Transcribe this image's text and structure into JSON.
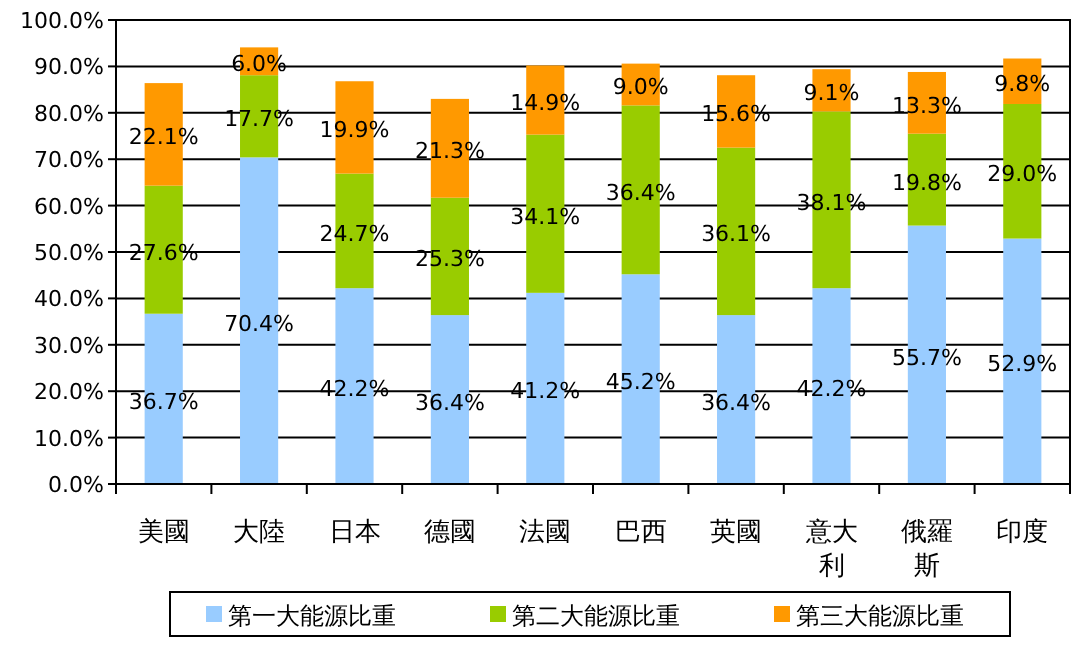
{
  "chart_data": {
    "type": "bar",
    "stacked": true,
    "grid": "y",
    "legend": "bottom",
    "categories": [
      "美國",
      "大陸",
      "日本",
      "德國",
      "法國",
      "巴西",
      "英國",
      "意大利",
      "俄羅斯",
      "印度"
    ],
    "series": [
      {
        "name": "第一大能源比重",
        "color": "#99ccff",
        "values": [
          36.7,
          70.4,
          42.2,
          36.4,
          41.2,
          45.2,
          36.4,
          42.2,
          55.7,
          52.9
        ],
        "value_labels": [
          "36.7%",
          "70.4%",
          "42.2%",
          "36.4%",
          "41.2%",
          "45.2%",
          "36.4%",
          "42.2%",
          "55.7%",
          "52.9%"
        ]
      },
      {
        "name": "第二大能源比重",
        "color": "#99cc00",
        "values": [
          27.6,
          17.7,
          24.7,
          25.3,
          34.1,
          36.4,
          36.1,
          38.1,
          19.8,
          29.0
        ],
        "value_labels": [
          "27.6%",
          "17.7%",
          "24.7%",
          "25.3%",
          "34.1%",
          "36.4%",
          "36.1%",
          "38.1%",
          "19.8%",
          "29.0%"
        ]
      },
      {
        "name": "第三大能源比重",
        "color": "#ff9900",
        "values": [
          22.1,
          6.0,
          19.9,
          21.3,
          14.9,
          9.0,
          15.6,
          9.1,
          13.3,
          9.8
        ],
        "value_labels": [
          "22.1%",
          "6.0%",
          "19.9%",
          "21.3%",
          "14.9%",
          "9.0%",
          "15.6%",
          "9.1%",
          "13.3%",
          "9.8%"
        ]
      }
    ],
    "ylim": [
      0,
      100
    ],
    "yticks": [
      {
        "value": 0,
        "label": "0.0%"
      },
      {
        "value": 10,
        "label": "10.0%"
      },
      {
        "value": 20,
        "label": "20.0%"
      },
      {
        "value": 30,
        "label": "30.0%"
      },
      {
        "value": 40,
        "label": "40.0%"
      },
      {
        "value": 50,
        "label": "50.0%"
      },
      {
        "value": 60,
        "label": "60.0%"
      },
      {
        "value": 70,
        "label": "70.0%"
      },
      {
        "value": 80,
        "label": "80.0%"
      },
      {
        "value": 90,
        "label": "90.0%"
      },
      {
        "value": 100,
        "label": "100.0%"
      }
    ]
  }
}
